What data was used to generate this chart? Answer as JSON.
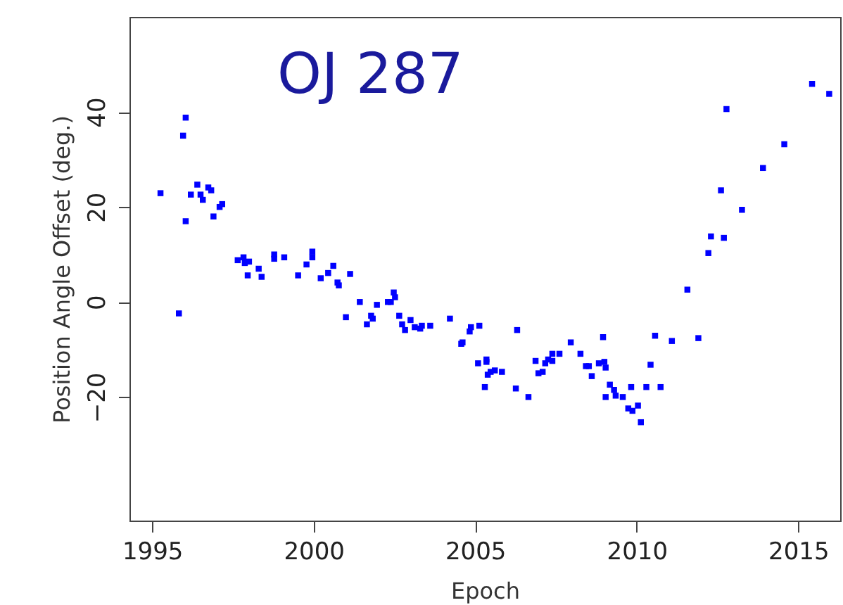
{
  "chart_data": {
    "type": "scatter",
    "xlabel": "Epoch",
    "ylabel": "Position Angle Offset (deg.)",
    "annotations": [
      "OJ 287"
    ],
    "marker": "square",
    "grid": false,
    "xlim": [
      1994.3,
      2016.3
    ],
    "xticks": [
      1995,
      2000,
      2005,
      2010,
      2015
    ],
    "ylim": [
      -46,
      60
    ],
    "yticks": [
      -20,
      0,
      20,
      40
    ],
    "series": [
      {
        "color": "#0000ff",
        "x": [
          1995.26,
          1995.83,
          1995.96,
          1996.04,
          1996.04,
          1996.2,
          1996.4,
          1996.5,
          1996.57,
          1996.74,
          1996.83,
          1996.9,
          1997.09,
          1997.17,
          1997.65,
          1997.83,
          1997.87,
          1998.0,
          1997.96,
          1998.3,
          1998.39,
          1998.78,
          1998.78,
          1999.09,
          1999.52,
          1999.78,
          1999.96,
          1999.96,
          2000.22,
          2000.45,
          2000.61,
          2000.74,
          2000.78,
          2001.13,
          2001.0,
          2001.43,
          2001.65,
          2001.78,
          2001.83,
          2001.96,
          2002.3,
          2002.39,
          2002.48,
          2002.52,
          2002.65,
          2002.74,
          2002.83,
          2003.0,
          2003.13,
          2003.3,
          2003.35,
          2003.61,
          2004.22,
          2004.57,
          2004.61,
          2004.83,
          2004.87,
          2005.13,
          2005.09,
          2005.35,
          2005.35,
          2005.3,
          2005.39,
          2005.48,
          2005.61,
          2005.83,
          2006.3,
          2006.26,
          2006.65,
          2006.87,
          2006.96,
          2007.09,
          2007.17,
          2007.26,
          2007.39,
          2007.39,
          2007.61,
          2007.96,
          2008.26,
          2008.43,
          2008.52,
          2008.61,
          2008.83,
          2008.96,
          2009.0,
          2009.04,
          2009.04,
          2009.17,
          2009.3,
          2009.35,
          2009.57,
          2009.83,
          2009.74,
          2009.87,
          2010.04,
          2010.13,
          2010.3,
          2010.43,
          2010.57,
          2010.74,
          2011.09,
          2011.91,
          2011.57,
          2012.22,
          2012.3,
          2012.7,
          2012.61,
          2012.78,
          2013.26,
          2013.91,
          2014.57,
          2015.43,
          2015.96
        ],
        "values": [
          22.9,
          -2.4,
          35,
          38.8,
          17,
          22.6,
          24.7,
          22.6,
          21.5,
          24.1,
          23.5,
          18,
          20,
          20.6,
          8.8,
          9.4,
          8.2,
          8.5,
          5.6,
          7,
          5.3,
          10,
          9.1,
          9.4,
          5.6,
          7.9,
          10.6,
          9.4,
          5,
          6.1,
          7.6,
          4.1,
          3.5,
          5.9,
          -3.2,
          0,
          -4.7,
          -2.9,
          -3.5,
          -0.6,
          0,
          0,
          2,
          1,
          -2.9,
          -4.7,
          -5.9,
          -3.8,
          -5.3,
          -5.6,
          -5,
          -5,
          -3.5,
          -8.8,
          -8.5,
          -6.2,
          -5.3,
          -5,
          -12.9,
          -12.1,
          -12.6,
          -17.9,
          -15.3,
          -14.7,
          -14.4,
          -14.7,
          -5.9,
          -18.2,
          -20,
          -12.4,
          -15,
          -14.7,
          -12.9,
          -12.1,
          -10.9,
          -12.4,
          -10.9,
          -8.5,
          -10.9,
          -13.5,
          -13.5,
          -15.6,
          -12.9,
          -7.4,
          -12.6,
          -13.8,
          -20,
          -17.4,
          -18.5,
          -19.7,
          -20,
          -17.9,
          -22.4,
          -22.9,
          -21.8,
          -25.3,
          -17.9,
          -13.2,
          -7.1,
          -17.9,
          -8.2,
          -7.6,
          2.6,
          10.3,
          13.8,
          13.5,
          23.5,
          40.6,
          19.4,
          28.2,
          33.2,
          45.9,
          43.8
        ]
      }
    ]
  }
}
